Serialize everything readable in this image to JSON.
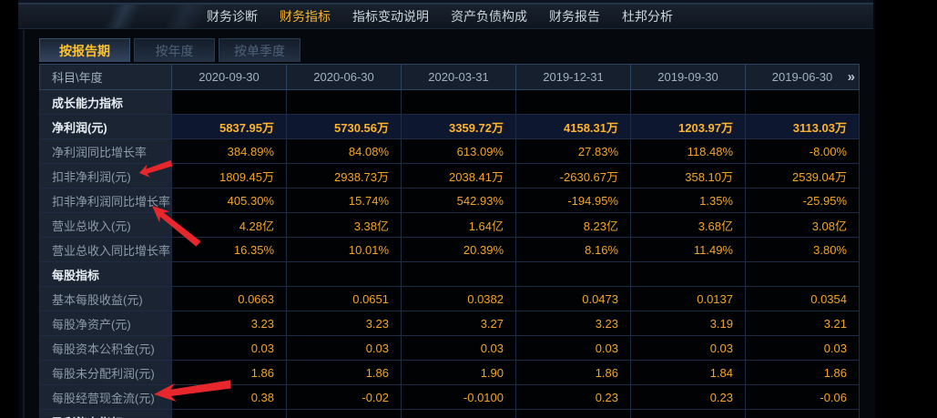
{
  "nav": {
    "items": [
      {
        "label": "财务诊断",
        "active": false
      },
      {
        "label": "财务指标",
        "active": true
      },
      {
        "label": "指标变动说明",
        "active": false
      },
      {
        "label": "资产负债构成",
        "active": false
      },
      {
        "label": "财务报告",
        "active": false
      },
      {
        "label": "杜邦分析",
        "active": false
      }
    ]
  },
  "tabs": [
    {
      "label": "按报告期",
      "active": true
    },
    {
      "label": "按年度",
      "active": false
    },
    {
      "label": "按单季度",
      "active": false
    }
  ],
  "table": {
    "corner_label": "科目\\年度",
    "columns": [
      "2020-09-30",
      "2020-06-30",
      "2020-03-31",
      "2019-12-31",
      "2019-09-30",
      "2019-06-30"
    ],
    "next_icon": "»",
    "rows": [
      {
        "label": "成长能力指标",
        "type": "section",
        "values": [
          "",
          "",
          "",
          "",
          "",
          ""
        ]
      },
      {
        "label": "净利润(元)",
        "type": "highlight",
        "values": [
          "5837.95万",
          "5730.56万",
          "3359.72万",
          "4158.31万",
          "1203.97万",
          "3113.03万"
        ]
      },
      {
        "label": "净利润同比增长率",
        "type": "normal",
        "values": [
          "384.89%",
          "84.08%",
          "613.09%",
          "27.83%",
          "118.48%",
          "-8.00%"
        ]
      },
      {
        "label": "扣非净利润(元)",
        "type": "normal",
        "values": [
          "1809.45万",
          "2938.73万",
          "2038.41万",
          "-2630.67万",
          "358.10万",
          "2539.04万"
        ]
      },
      {
        "label": "扣非净利润同比增长率",
        "type": "normal",
        "values": [
          "405.30%",
          "15.74%",
          "542.93%",
          "-194.95%",
          "1.35%",
          "-25.95%"
        ]
      },
      {
        "label": "营业总收入(元)",
        "type": "normal",
        "values": [
          "4.28亿",
          "3.38亿",
          "1.64亿",
          "8.23亿",
          "3.68亿",
          "3.08亿"
        ]
      },
      {
        "label": "营业总收入同比增长率",
        "type": "normal",
        "values": [
          "16.35%",
          "10.01%",
          "20.39%",
          "8.16%",
          "11.49%",
          "3.80%"
        ]
      },
      {
        "label": "每股指标",
        "type": "section",
        "values": [
          "",
          "",
          "",
          "",
          "",
          ""
        ]
      },
      {
        "label": "基本每股收益(元)",
        "type": "normal",
        "values": [
          "0.0663",
          "0.0651",
          "0.0382",
          "0.0473",
          "0.0137",
          "0.0354"
        ]
      },
      {
        "label": "每股净资产(元)",
        "type": "normal",
        "values": [
          "3.23",
          "3.23",
          "3.27",
          "3.23",
          "3.19",
          "3.21"
        ]
      },
      {
        "label": "每股资本公积金(元)",
        "type": "normal",
        "values": [
          "0.03",
          "0.03",
          "0.03",
          "0.03",
          "0.03",
          "0.03"
        ]
      },
      {
        "label": "每股未分配利润(元)",
        "type": "normal",
        "values": [
          "1.86",
          "1.86",
          "1.90",
          "1.86",
          "1.84",
          "1.86"
        ]
      },
      {
        "label": "每股经营现金流(元)",
        "type": "normal",
        "values": [
          "0.38",
          "-0.02",
          "-0.0100",
          "0.23",
          "0.23",
          "-0.06"
        ]
      },
      {
        "label": "盈利能力指标",
        "type": "section",
        "values": [
          "",
          "",
          "",
          "",
          "",
          ""
        ]
      }
    ]
  },
  "annotations": {
    "arrows": [
      "扣非净利润(元)",
      "扣非净利润同比增长率",
      "每股经营现金流(元)"
    ]
  },
  "colors": {
    "accent_yellow": "#f8b42a",
    "tab_active_yellow": "#ffc228",
    "value_orange": "#f5a524",
    "highlight_value_orange": "#ffb32b",
    "arrow_red": "#e8272c",
    "header_bg": "#161f2d",
    "label_cell_bg": "#1a2432",
    "highlight_cell_bg": "#0d1830"
  }
}
